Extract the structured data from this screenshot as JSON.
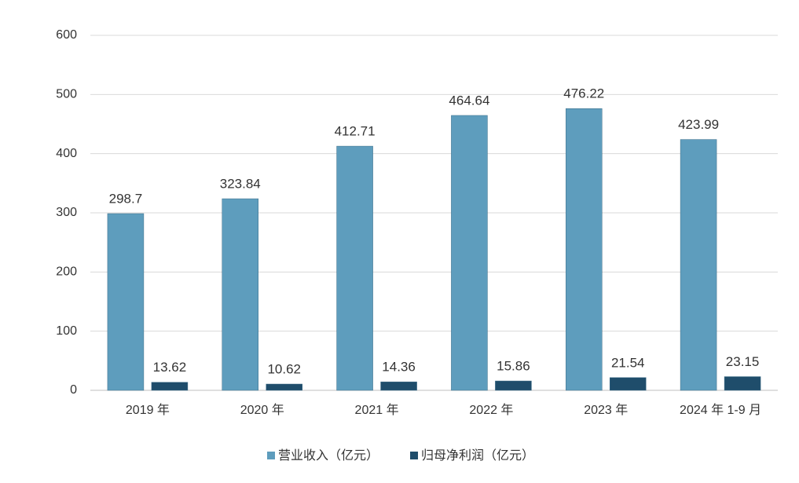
{
  "chart_data": {
    "type": "bar",
    "categories": [
      "2019 年",
      "2020 年",
      "2021 年",
      "2022 年",
      "2023 年",
      "2024 年 1-9 月"
    ],
    "series": [
      {
        "name": "营业收入（亿元）",
        "color": "#5e9dbd",
        "values": [
          298.7,
          323.84,
          412.71,
          464.64,
          476.22,
          423.99
        ]
      },
      {
        "name": "归母净利润（亿元）",
        "color": "#1f4d6b",
        "values": [
          13.62,
          10.62,
          14.36,
          15.86,
          21.54,
          23.15
        ]
      }
    ],
    "ylim": [
      0,
      600
    ],
    "yticks": [
      0,
      100,
      200,
      300,
      400,
      500,
      600
    ],
    "grid": true,
    "legend": "bottom"
  }
}
